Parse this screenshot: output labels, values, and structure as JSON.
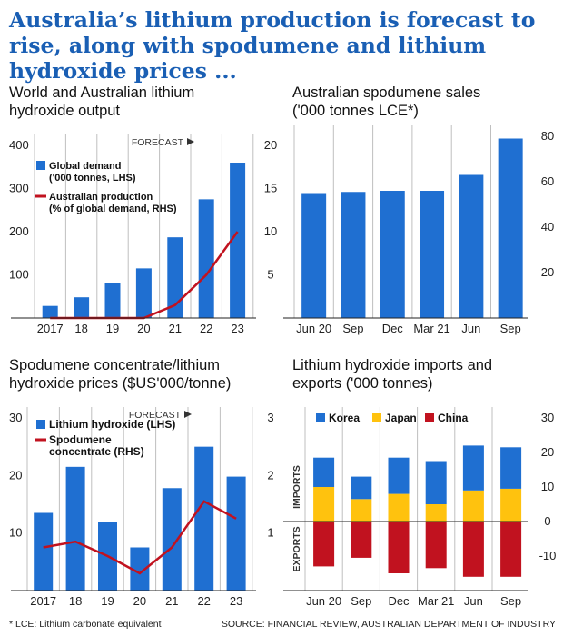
{
  "headline": "Australia’s lithium production is forecast to rise, along with spodumene and lithium hydroxide prices ...",
  "colors": {
    "blue": "#1f6fd1",
    "red": "#c1121f",
    "yellow": "#ffc20e",
    "headline": "#1a5fb4",
    "grid": "#bfbfbf"
  },
  "footer": {
    "note": "* LCE: Lithium carbonate equivalent",
    "source": "SOURCE: FINANCIAL REVIEW, AUSTRALIAN DEPARTMENT OF INDUSTRY"
  },
  "chart_data": [
    {
      "title": "World and Australian lithium hydroxide output",
      "type": "bar",
      "forecast_label": "FORECAST",
      "categories": [
        "2017",
        "18",
        "19",
        "20",
        "21",
        "22",
        "23"
      ],
      "y_left": {
        "ylim": [
          0,
          400
        ],
        "ticks": [
          100,
          200,
          300,
          400
        ]
      },
      "y_right": {
        "ylim": [
          0,
          20
        ],
        "ticks": [
          5,
          10,
          15,
          20
        ]
      },
      "series": [
        {
          "name": "Global demand\n('000 tonnes, LHS)",
          "type": "bar",
          "axis": "left",
          "values": [
            28,
            48,
            80,
            115,
            187,
            275,
            360
          ]
        },
        {
          "name": "Australian production\n(% of global demand, RHS)",
          "type": "line",
          "axis": "right",
          "values": [
            0,
            0,
            0,
            0,
            1.5,
            5,
            10
          ]
        }
      ],
      "grid": "vertical",
      "legend": "top-left"
    },
    {
      "title": "Australian spodumene sales ('000 tonnes LCE*)",
      "type": "bar",
      "categories": [
        "Jun 20",
        "Sep",
        "Dec",
        "Mar 21",
        "Jun",
        "Sep"
      ],
      "y_right": {
        "ylim": [
          0,
          80
        ],
        "ticks": [
          20,
          40,
          60,
          80
        ]
      },
      "series": [
        {
          "type": "bar",
          "axis": "right",
          "values": [
            55,
            55.5,
            56,
            56,
            63,
            79
          ]
        }
      ],
      "grid": "vertical"
    },
    {
      "title": "Spodumene concentrate/lithium hydroxide prices ($US'000/tonne)",
      "type": "bar",
      "forecast_label": "FORECAST",
      "categories": [
        "2017",
        "18",
        "19",
        "20",
        "21",
        "22",
        "23"
      ],
      "y_left": {
        "ylim": [
          0,
          30
        ],
        "ticks": [
          10,
          20,
          30
        ]
      },
      "y_right": {
        "ylim": [
          0,
          3
        ],
        "ticks": [
          1,
          2,
          3
        ]
      },
      "series": [
        {
          "name": "Lithium hydroxide (LHS)",
          "type": "bar",
          "axis": "left",
          "values": [
            13.5,
            21.5,
            12,
            7.5,
            17.8,
            25,
            19.8
          ]
        },
        {
          "name": "Spodumene\nconcentrate (RHS)",
          "type": "line",
          "axis": "right",
          "values": [
            0.75,
            0.85,
            0.6,
            0.3,
            0.75,
            1.55,
            1.25
          ]
        }
      ],
      "grid": "vertical",
      "legend": "top-left"
    },
    {
      "title": "Lithium hydroxide imports and exports ('000 tonnes)",
      "type": "bar",
      "stacked": true,
      "categories": [
        "Jun 20",
        "Sep",
        "Dec",
        "Mar 21",
        "Jun",
        "Sep"
      ],
      "y_right": {
        "ylim": [
          -20,
          30
        ],
        "ticks": [
          -10,
          0,
          10,
          20,
          30
        ]
      },
      "side_labels": {
        "imports": "IMPORTS",
        "exports": "EXPORTS"
      },
      "series": [
        {
          "name": "Korea",
          "values": [
            8.5,
            6.5,
            10.5,
            12.5,
            13,
            12
          ]
        },
        {
          "name": "Japan",
          "values": [
            10,
            6.5,
            8,
            5,
            9,
            9.5
          ]
        },
        {
          "name": "China",
          "values": [
            -13,
            -10.5,
            -15,
            -13.5,
            -16,
            -16
          ]
        }
      ],
      "grid": "vertical",
      "legend": "top-left"
    }
  ]
}
